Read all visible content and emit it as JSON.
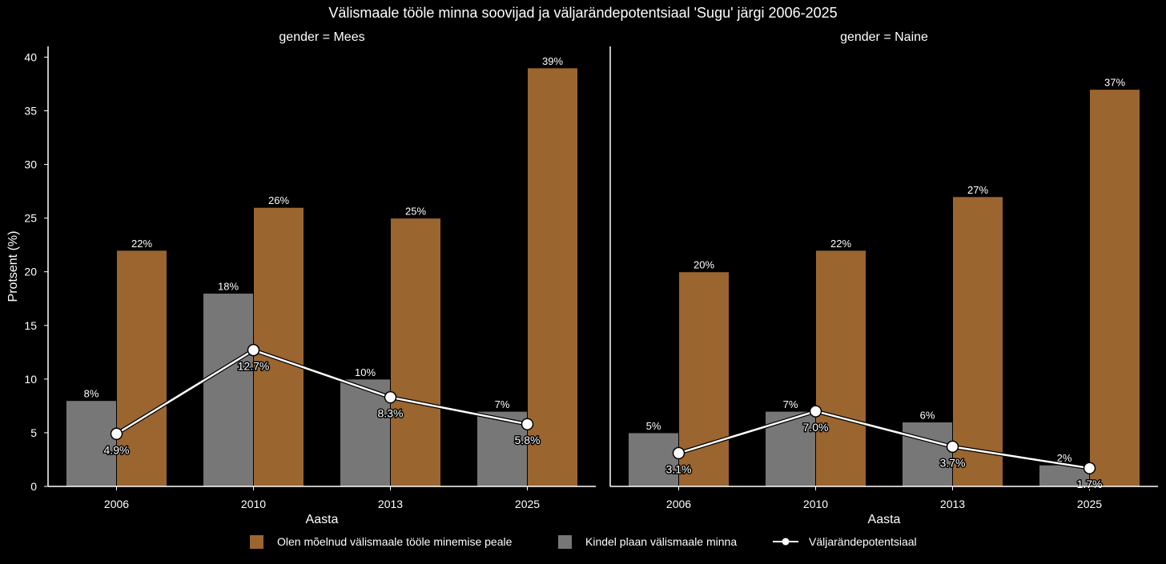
{
  "chart_data": {
    "type": "bar",
    "title": "Välismaale tööle minna soovijad ja väljarändepotentsiaal 'Sugu' järgi 2006-2025",
    "xlabel": "Aasta",
    "ylabel": "Protsent (%)",
    "categories": [
      "2006",
      "2010",
      "2013",
      "2025"
    ],
    "ylim": [
      0,
      41
    ],
    "y_ticks": [
      "0",
      "5",
      "10",
      "15",
      "20",
      "25",
      "30",
      "35",
      "40"
    ],
    "grid": false,
    "legend_position": "bottom-center",
    "colors": {
      "background": "#000000",
      "considered": "#9b6530",
      "plan": "#777777",
      "potential_line": "#ffffff"
    },
    "legend": [
      {
        "key": "considered",
        "label": "Olen mõelnud välismaale tööle minemise peale"
      },
      {
        "key": "plan",
        "label": "Kindel plaan välismaale minna"
      },
      {
        "key": "potential",
        "label": "Väljarändepotentsiaal"
      }
    ],
    "panels": [
      {
        "title": "gender = Mees",
        "series": [
          {
            "name": "Kindel plaan välismaale minna",
            "key": "plan",
            "values": [
              8,
              18,
              10,
              7
            ],
            "labels": [
              "8%",
              "18%",
              "10%",
              "7%"
            ]
          },
          {
            "name": "Olen mõelnud välismaale tööle minemise peale",
            "key": "considered",
            "values": [
              22,
              26,
              25,
              39
            ],
            "labels": [
              "22%",
              "26%",
              "25%",
              "39%"
            ]
          },
          {
            "name": "Väljarändepotentsiaal",
            "key": "potential",
            "values": [
              4.9,
              12.7,
              8.3,
              5.8
            ],
            "labels": [
              "4.9%",
              "12.7%",
              "8.3%",
              "5.8%"
            ]
          }
        ]
      },
      {
        "title": "gender = Naine",
        "series": [
          {
            "name": "Kindel plaan välismaale minna",
            "key": "plan",
            "values": [
              5,
              7,
              6,
              2
            ],
            "labels": [
              "5%",
              "7%",
              "6%",
              "2%"
            ]
          },
          {
            "name": "Olen mõelnud välismaale tööle minemise peale",
            "key": "considered",
            "values": [
              20,
              22,
              27,
              37
            ],
            "labels": [
              "20%",
              "22%",
              "27%",
              "37%"
            ]
          },
          {
            "name": "Väljarändepotentsiaal",
            "key": "potential",
            "values": [
              3.1,
              7.0,
              3.7,
              1.7
            ],
            "labels": [
              "3.1%",
              "7.0%",
              "3.7%",
              "1.7%"
            ]
          }
        ]
      }
    ]
  }
}
